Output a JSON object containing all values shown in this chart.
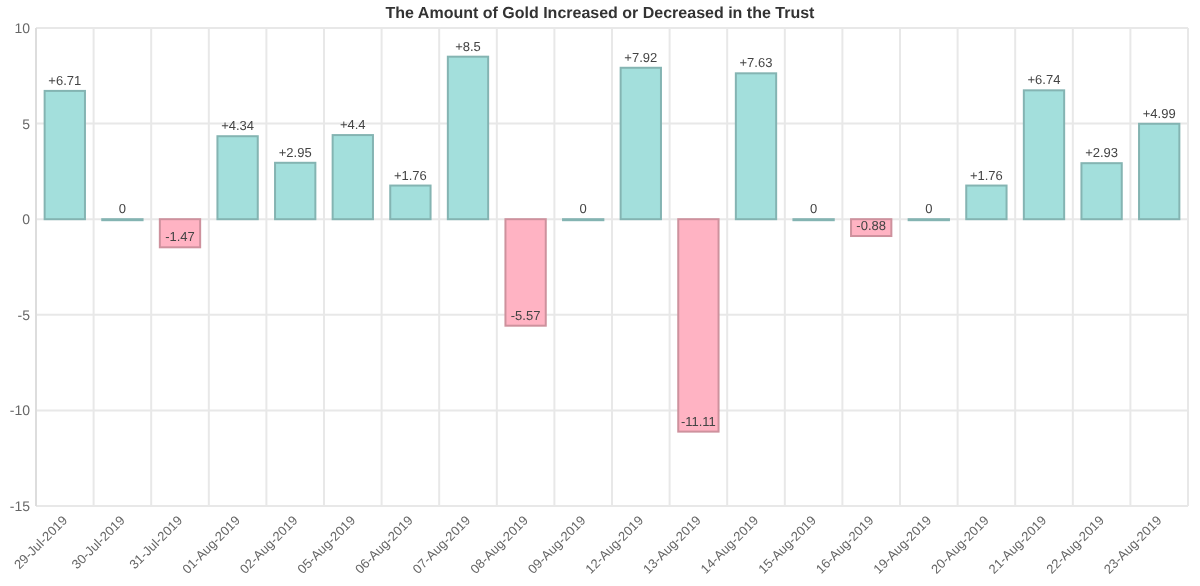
{
  "chart_data": {
    "type": "bar",
    "title": "The Amount of Gold Increased or Decreased in the Trust",
    "categories": [
      "29-Jul-2019",
      "30-Jul-2019",
      "31-Jul-2019",
      "01-Aug-2019",
      "02-Aug-2019",
      "05-Aug-2019",
      "06-Aug-2019",
      "07-Aug-2019",
      "08-Aug-2019",
      "09-Aug-2019",
      "12-Aug-2019",
      "13-Aug-2019",
      "14-Aug-2019",
      "15-Aug-2019",
      "16-Aug-2019",
      "19-Aug-2019",
      "20-Aug-2019",
      "21-Aug-2019",
      "22-Aug-2019",
      "23-Aug-2019"
    ],
    "values": [
      6.71,
      0,
      -1.47,
      4.34,
      2.95,
      4.4,
      1.76,
      8.5,
      -5.57,
      0,
      7.92,
      -11.11,
      7.63,
      0,
      -0.88,
      0,
      1.76,
      6.74,
      2.93,
      4.99
    ],
    "value_labels": [
      "+6.71",
      "0",
      "-1.47",
      "+4.34",
      "+2.95",
      "+4.4",
      "+1.76",
      "+8.5",
      "-5.57",
      "0",
      "+7.92",
      "-11.11",
      "+7.63",
      "0",
      "-0.88",
      "0",
      "+1.76",
      "+6.74",
      "+2.93",
      "+4.99"
    ],
    "colors": [
      "#a3dfdc",
      "#a3dfdc",
      "#ffb3c3",
      "#a3dfdc",
      "#a3dfdc",
      "#a3dfdc",
      "#a3dfdc",
      "#a3dfdc",
      "#ffb3c3",
      "#a3dfdc",
      "#a3dfdc",
      "#ffb3c3",
      "#a3dfdc",
      "#a3dfdc",
      "#ffb3c3",
      "#a3dfdc",
      "#a3dfdc",
      "#a3dfdc",
      "#a3dfdc",
      "#a3dfdc"
    ],
    "ylim": [
      -15,
      10
    ],
    "yticks": [
      -15,
      -10,
      -5,
      0,
      5,
      10
    ],
    "grid": true
  }
}
